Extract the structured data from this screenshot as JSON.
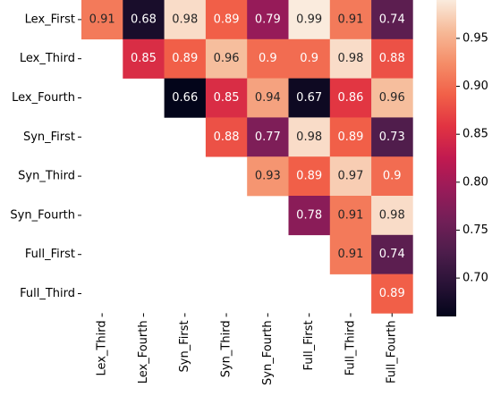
{
  "chart_data": {
    "type": "heatmap",
    "title": "",
    "xlabel": "",
    "ylabel": "",
    "row_labels": [
      "Lex_First",
      "Lex_Third",
      "Lex_Fourth",
      "Syn_First",
      "Syn_Third",
      "Syn_Fourth",
      "Full_First",
      "Full_Third"
    ],
    "col_labels": [
      "Lex_Third",
      "Lex_Fourth",
      "Syn_First",
      "Syn_Third",
      "Syn_Fourth",
      "Full_First",
      "Full_Third",
      "Full_Fourth"
    ],
    "values": [
      [
        0.91,
        0.68,
        0.98,
        0.89,
        0.79,
        0.99,
        0.91,
        0.74
      ],
      [
        null,
        0.85,
        0.89,
        0.96,
        0.9,
        0.9,
        0.98,
        0.88
      ],
      [
        null,
        null,
        0.66,
        0.85,
        0.94,
        0.67,
        0.86,
        0.96
      ],
      [
        null,
        null,
        null,
        0.88,
        0.77,
        0.98,
        0.89,
        0.73
      ],
      [
        null,
        null,
        null,
        null,
        0.93,
        0.89,
        0.97,
        0.9
      ],
      [
        null,
        null,
        null,
        null,
        null,
        0.78,
        0.91,
        0.98
      ],
      [
        null,
        null,
        null,
        null,
        null,
        null,
        0.91,
        0.74
      ],
      [
        null,
        null,
        null,
        null,
        null,
        null,
        null,
        0.89
      ]
    ],
    "colorbar": {
      "colormap": "rocket",
      "vmin": 0.66,
      "vmax": 0.99,
      "ticks": [
        0.7,
        0.75,
        0.8,
        0.85,
        0.9,
        0.95
      ],
      "tick_labels": [
        "0.70",
        "0.75",
        "0.80",
        "0.85",
        "0.90",
        "0.95"
      ]
    },
    "grid": false,
    "legend": "colorbar-right"
  }
}
